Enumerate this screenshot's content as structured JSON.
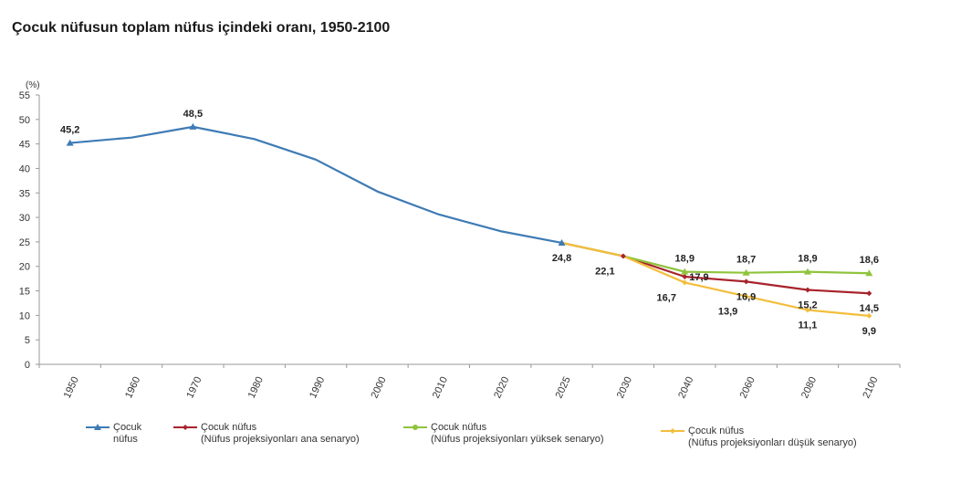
{
  "chart_data": {
    "type": "line",
    "title": "Çocuk nüfusun toplam nüfus içindeki oranı, 1950-2100",
    "ylabel": "(%)",
    "xlabel": "",
    "ylim": [
      0,
      55
    ],
    "yticks": [
      0,
      5,
      10,
      15,
      20,
      25,
      30,
      35,
      40,
      45,
      50,
      55
    ],
    "categories": [
      "1950",
      "1960",
      "1970",
      "1980",
      "1990",
      "2000",
      "2010",
      "2020",
      "2025",
      "2030",
      "2040",
      "2060",
      "2080",
      "2100"
    ],
    "grid": false,
    "legend_position": "bottom",
    "series": [
      {
        "name": "Çocuk\nnüfus",
        "color": "#3E7BB5",
        "marker": "triangle",
        "values": [
          45.2,
          46.3,
          48.5,
          46.0,
          41.8,
          35.3,
          30.6,
          27.2,
          24.8,
          null,
          null,
          null,
          null,
          null
        ],
        "markers_at": [
          0,
          2,
          8
        ],
        "labels": [
          {
            "index": 0,
            "text": "45,2",
            "pos": "above"
          },
          {
            "index": 2,
            "text": "48,5",
            "pos": "above"
          },
          {
            "index": 8,
            "text": "24,8",
            "pos": "below"
          }
        ]
      },
      {
        "name": "Çocuk nüfus\n(Nüfus projeksiyonları ana senaryo)",
        "color": "#A8232C",
        "marker": "diamond",
        "values": [
          null,
          null,
          null,
          null,
          null,
          null,
          null,
          null,
          24.8,
          22.1,
          17.9,
          16.9,
          15.2,
          14.5
        ],
        "markers_at": [
          9,
          10,
          11,
          12,
          13
        ],
        "labels": [
          {
            "index": 9,
            "text": "22,1",
            "pos": "below-left"
          },
          {
            "index": 10,
            "text": "17,9",
            "pos": "right"
          },
          {
            "index": 11,
            "text": "16,9",
            "pos": "below"
          },
          {
            "index": 12,
            "text": "15,2",
            "pos": "below"
          },
          {
            "index": 13,
            "text": "14,5",
            "pos": "below"
          }
        ]
      },
      {
        "name": "Çocuk nüfus\n(Nüfus projeksiyonları yüksek senaryo)",
        "color": "#8FC43D",
        "marker": "triangle",
        "values": [
          null,
          null,
          null,
          null,
          null,
          null,
          null,
          null,
          24.8,
          22.1,
          18.9,
          18.7,
          18.9,
          18.6
        ],
        "markers_at": [
          10,
          11,
          12,
          13
        ],
        "labels": [
          {
            "index": 10,
            "text": "18,9",
            "pos": "above"
          },
          {
            "index": 11,
            "text": "18,7",
            "pos": "above"
          },
          {
            "index": 12,
            "text": "18,9",
            "pos": "above"
          },
          {
            "index": 13,
            "text": "18,6",
            "pos": "above"
          }
        ]
      },
      {
        "name": "Çocuk nüfus\n(Nüfus projeksiyonları düşük senaryo)",
        "color": "#F3BE3C",
        "marker": "diamond",
        "values": [
          null,
          null,
          null,
          null,
          null,
          null,
          null,
          null,
          24.8,
          22.1,
          16.7,
          13.9,
          11.1,
          9.9
        ],
        "markers_at": [
          10,
          11,
          12,
          13
        ],
        "labels": [
          {
            "index": 10,
            "text": "16,7",
            "pos": "below-left"
          },
          {
            "index": 11,
            "text": "13,9",
            "pos": "below-left"
          },
          {
            "index": 12,
            "text": "11,1",
            "pos": "below"
          },
          {
            "index": 13,
            "text": "9,9",
            "pos": "below"
          }
        ]
      }
    ]
  }
}
